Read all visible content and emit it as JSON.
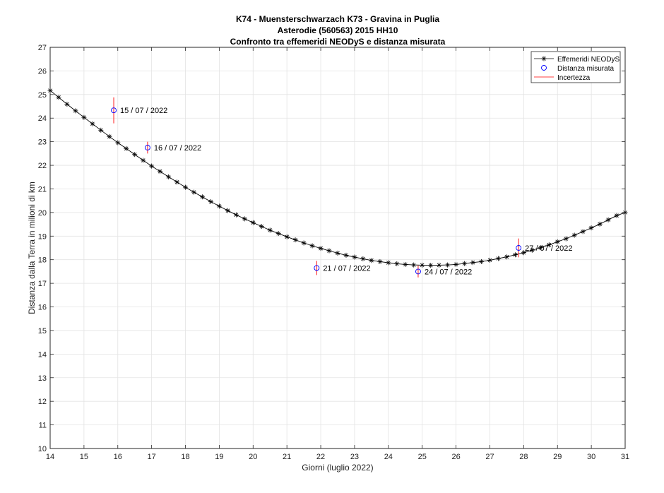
{
  "chart_data": {
    "type": "scatter",
    "title_lines": [
      "K74 - Muensterschwarzach      K73 - Gravina in Puglia",
      "Asterodie (560563) 2015 HH10",
      "Confronto tra effemeridi NEODyS e distanza misurata"
    ],
    "xlabel": "Giorni (luglio 2022)",
    "ylabel": "Distanza dalla Terra in milioni di km",
    "xlim": [
      14,
      31
    ],
    "ylim": [
      10,
      27
    ],
    "xticks": [
      "14",
      "15",
      "16",
      "17",
      "18",
      "19",
      "20",
      "21",
      "22",
      "23",
      "24",
      "25",
      "26",
      "27",
      "28",
      "29",
      "30",
      "31"
    ],
    "yticks": [
      "10",
      "11",
      "12",
      "13",
      "14",
      "15",
      "16",
      "17",
      "18",
      "19",
      "20",
      "21",
      "22",
      "23",
      "24",
      "25",
      "26",
      "27"
    ],
    "grid": true,
    "legend_position": "top-right",
    "legend": [
      "Effemeridi NEODyS",
      "Distanza misurata",
      "Incertezza"
    ],
    "colors": {
      "ephemeris": "#000000",
      "measured": "#0000ff",
      "uncertainty": "#ff0000"
    },
    "ephemeris": {
      "name": "Effemeridi NEODyS",
      "x": [
        14,
        14.25,
        14.5,
        14.75,
        15,
        15.25,
        15.5,
        15.75,
        16,
        16.25,
        16.5,
        16.75,
        17,
        17.25,
        17.5,
        17.75,
        18,
        18.25,
        18.5,
        18.75,
        19,
        19.25,
        19.5,
        19.75,
        20,
        20.25,
        20.5,
        20.75,
        21,
        21.25,
        21.5,
        21.75,
        22,
        22.25,
        22.5,
        22.75,
        23,
        23.25,
        23.5,
        23.75,
        24,
        24.25,
        24.5,
        24.75,
        25,
        25.25,
        25.5,
        25.75,
        26,
        26.25,
        26.5,
        26.75,
        27,
        27.25,
        27.5,
        27.75,
        28,
        28.25,
        28.5,
        28.75,
        29,
        29.25,
        29.5,
        29.75,
        30,
        30.25,
        30.5,
        30.75,
        31
      ],
      "y": [
        25.17,
        24.88,
        24.59,
        24.31,
        24.03,
        23.76,
        23.49,
        23.22,
        22.96,
        22.71,
        22.46,
        22.21,
        21.97,
        21.74,
        21.51,
        21.29,
        21.07,
        20.86,
        20.66,
        20.46,
        20.27,
        20.08,
        19.9,
        19.73,
        19.57,
        19.41,
        19.25,
        19.11,
        18.97,
        18.84,
        18.71,
        18.59,
        18.48,
        18.38,
        18.28,
        18.19,
        18.11,
        18.04,
        17.97,
        17.92,
        17.87,
        17.83,
        17.8,
        17.78,
        17.77,
        17.76,
        17.77,
        17.78,
        17.8,
        17.84,
        17.88,
        17.92,
        17.98,
        18.05,
        18.12,
        18.21,
        18.3,
        18.4,
        18.51,
        18.63,
        18.76,
        18.89,
        19.04,
        19.19,
        19.35,
        19.51,
        19.69,
        19.87,
        20.0
      ]
    },
    "measured": {
      "name": "Distanza misurata",
      "points": [
        {
          "x": 15.88,
          "y": 24.33,
          "err": 0.55,
          "label": "15 / 07 / 2022"
        },
        {
          "x": 16.88,
          "y": 22.75,
          "err": 0.25,
          "label": "16 / 07 / 2022"
        },
        {
          "x": 21.88,
          "y": 17.65,
          "err": 0.3,
          "label": "21 / 07 / 2022"
        },
        {
          "x": 24.88,
          "y": 17.5,
          "err": 0.25,
          "label": "24 / 07 / 2022"
        },
        {
          "x": 27.85,
          "y": 18.5,
          "err": 0.4,
          "label": "27 / 07 / 2022"
        }
      ]
    }
  }
}
